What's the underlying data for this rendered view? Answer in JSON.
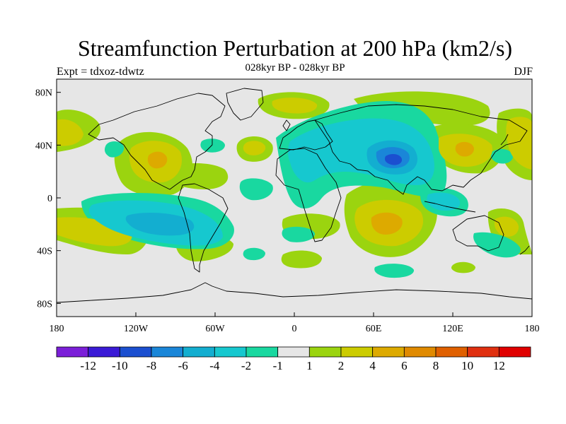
{
  "title": "Streamfunction Perturbation at 200 hPa (km2/s)",
  "subtitle": "028kyr BP - 028kyr BP",
  "left_label": "Expt = tdxoz-tdwtz",
  "right_label": "DJF",
  "map": {
    "projection": "cylindrical equidistant",
    "lon_range": [
      -180,
      180
    ],
    "lat_range": [
      -90,
      90
    ],
    "background_color": "#e6e6e6",
    "coastline_color": "#000000",
    "x_ticks": [
      {
        "lon": -180,
        "label": "180"
      },
      {
        "lon": -120,
        "label": "120W"
      },
      {
        "lon": -60,
        "label": "60W"
      },
      {
        "lon": 0,
        "label": "0"
      },
      {
        "lon": 60,
        "label": "60E"
      },
      {
        "lon": 120,
        "label": "120E"
      },
      {
        "lon": 180,
        "label": "180"
      }
    ],
    "y_ticks": [
      {
        "lat": 80,
        "label": "80N"
      },
      {
        "lat": 40,
        "label": "40N"
      },
      {
        "lat": 0,
        "label": "0"
      },
      {
        "lat": -40,
        "label": "40S"
      },
      {
        "lat": -80,
        "label": "80S"
      }
    ]
  },
  "colorbar": {
    "colors": [
      "#7b1fd8",
      "#3a1ad6",
      "#1b4fd0",
      "#1a86d8",
      "#13aed0",
      "#16c8cf",
      "#19d8a0",
      "#e6e6e6",
      "#9bd40f",
      "#cccc00",
      "#ddaa00",
      "#e08a00",
      "#e06000",
      "#e03010",
      "#e00000"
    ],
    "labels": [
      "-12",
      "-10",
      "-8",
      "-6",
      "-4",
      "-2",
      "-1",
      "1",
      "2",
      "4",
      "6",
      "8",
      "10",
      "12"
    ]
  },
  "contour_blobs": [
    {
      "region": "Eurasia trough",
      "lon": 40,
      "lat": 38,
      "level": "-1"
    },
    {
      "region": "Eurasia trough",
      "lon": 70,
      "lat": 33,
      "level": "-2"
    },
    {
      "region": "Tibet",
      "lon": 75,
      "lat": 30,
      "level": "-4"
    },
    {
      "region": "Tibet core",
      "lon": 78,
      "lat": 30,
      "level": "-8"
    },
    {
      "region": "South Pacific",
      "lon": -95,
      "lat": -20,
      "level": "-2"
    },
    {
      "region": "South Pacific core",
      "lon": -95,
      "lat": -20,
      "level": "-4"
    },
    {
      "region": "Indian Ocean high",
      "lon": 70,
      "lat": -20,
      "level": "4"
    },
    {
      "region": "Indian Ocean high core",
      "lon": 70,
      "lat": -20,
      "level": "6"
    },
    {
      "region": "North America",
      "lon": -105,
      "lat": 30,
      "level": "4"
    },
    {
      "region": "East Asia",
      "lon": 130,
      "lat": 40,
      "level": "4"
    }
  ]
}
